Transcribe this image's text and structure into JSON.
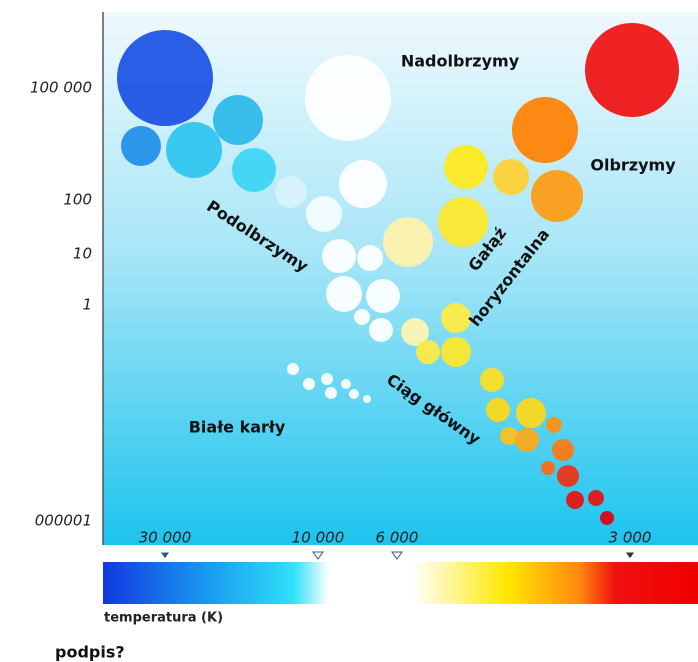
{
  "luminosity_ticks": [
    "100 000",
    "100",
    "10",
    "1",
    "000001"
  ],
  "temperature_ticks": [
    "30 000",
    "10 000",
    "6 000",
    "3 000"
  ],
  "temperature_label": "temperatura (K)",
  "regions": {
    "supergiants": "Nadolbrzymy",
    "giants": "Olbrzymy",
    "subgiants": "Podolbrzymy",
    "horizontal_branch": [
      "Gałąź",
      "horyzontalna"
    ],
    "main_sequence": "Ciąg główny",
    "white_dwarfs": "Białe karły"
  },
  "caption": "podpis?"
}
